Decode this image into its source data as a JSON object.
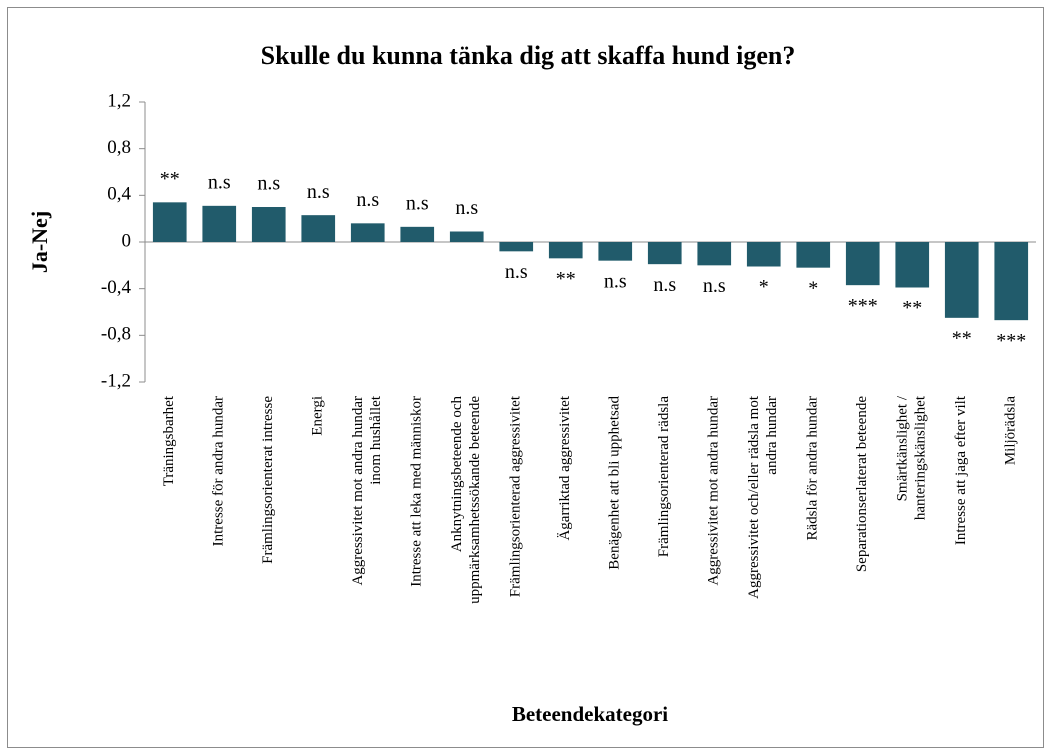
{
  "chart_data": {
    "type": "bar",
    "title": "Skulle du kunna tänka dig att skaffa hund igen?",
    "ylabel": "Ja-Nej",
    "xlabel": "Beteendekategori",
    "color": "#215b6b",
    "categories": [
      "Träningsbarhet",
      "Intresse för andra hundar",
      "Främlingsorienterat intresse",
      "Energi",
      "Aggressivitet mot andra hundar\ninom hushållet",
      "Intresse att leka med människor",
      "Anknytningsbeteende och\nuppmärksamhetssökande beteende",
      "Främlingsorienterad aggressivitet",
      "Ägarriktad aggressivitet",
      "Benägenhet att bli upphetsad",
      "Främlingsorienterad rädsla",
      "Aggressivitet mot andra hundar",
      "Aggressivitet och/eller rädsla mot\nandra hundar",
      "Rädsla för andra hundar",
      "Separationserlaterat beteende",
      "Smärtkänslighet /\nhanteringskänslighet",
      "Intresse att jaga efter vilt",
      "Miljörädsla"
    ],
    "values": [
      0.34,
      0.31,
      0.3,
      0.23,
      0.16,
      0.13,
      0.09,
      -0.08,
      -0.14,
      -0.16,
      -0.19,
      -0.2,
      -0.21,
      -0.22,
      -0.37,
      -0.39,
      -0.65,
      -0.67
    ],
    "annotations": [
      "**",
      "n.s",
      "n.s",
      "n.s",
      "n.s",
      "n.s",
      "n.s",
      "n.s",
      "**",
      "n.s",
      "n.s",
      "n.s",
      "*",
      "*",
      "***",
      "**",
      "**",
      "***"
    ],
    "ylim": [
      -1.2,
      1.2
    ],
    "yticks": [
      {
        "value": 1.2,
        "label": "1,2"
      },
      {
        "value": 0.8,
        "label": "0,8"
      },
      {
        "value": 0.4,
        "label": "0,4"
      },
      0,
      {
        "value": -0.4,
        "label": "-0,4"
      },
      {
        "value": -0.8,
        "label": "-0,8"
      },
      {
        "value": -1.2,
        "label": "-1,2"
      }
    ]
  }
}
